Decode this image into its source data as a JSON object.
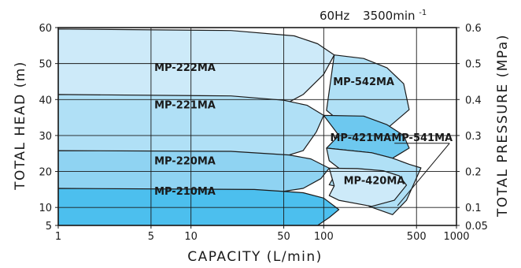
{
  "chart_data": {
    "type": "area",
    "condition": {
      "freq": "60Hz",
      "speed": "3500min",
      "speed_exp": "-1"
    },
    "xlabel": "CAPACITY (L/min)",
    "ylabel": "TOTAL HEAD (m)",
    "y2label": "TOTAL PRESSURE (MPa)",
    "x_scale": "log",
    "xlim": [
      1,
      1000
    ],
    "ylim": [
      5,
      60
    ],
    "x_ticks": [
      "1",
      "5",
      "10",
      "50",
      "100",
      "500",
      "1000"
    ],
    "y_ticks": [
      "5",
      "10",
      "20",
      "30",
      "40",
      "50",
      "60"
    ],
    "y2_ticks": [
      "0.05",
      "0.1",
      "0.2",
      "0.3",
      "0.4",
      "0.5",
      "0.6"
    ],
    "grid": true,
    "colors": {
      "lightest": "#cdeaf9",
      "light": "#b0e0f6",
      "mid": "#8fd3f2",
      "strong": "#6dc8ef",
      "strongest": "#4cbfee"
    },
    "series": [
      {
        "name": "MP-222MA",
        "color": "#cdeaf9",
        "boundary": [
          [
            1,
            59.6
          ],
          [
            20,
            59.2
          ],
          [
            60,
            57.7
          ],
          [
            90,
            55.5
          ],
          [
            120,
            52.4
          ],
          [
            100,
            47
          ],
          [
            70,
            41.4
          ]
        ]
      },
      {
        "name": "MP-221MA",
        "color": "#b0e0f6",
        "boundary": [
          [
            1,
            41.4
          ],
          [
            20,
            41.0
          ],
          [
            50,
            39.8
          ],
          [
            75,
            38.4
          ],
          [
            100,
            35.6
          ],
          [
            88,
            31
          ],
          [
            70,
            25.8
          ]
        ]
      },
      {
        "name": "MP-220MA",
        "color": "#8fd3f2",
        "boundary": [
          [
            1,
            25.8
          ],
          [
            20,
            25.6
          ],
          [
            55,
            24.6
          ],
          [
            80,
            23.5
          ],
          [
            110,
            20.9
          ],
          [
            95,
            18
          ],
          [
            70,
            15.3
          ]
        ]
      },
      {
        "name": "MP-210MA",
        "color": "#4cbfee",
        "boundary": [
          [
            1,
            15.3
          ],
          [
            30,
            15.0
          ],
          [
            70,
            14.1
          ],
          [
            100,
            12.6
          ],
          [
            130,
            9.4
          ],
          [
            110,
            7.2
          ],
          [
            90,
            5
          ]
        ]
      },
      {
        "name": "MP-542MA",
        "color": "#b0e0f6",
        "boundary": [
          [
            120,
            52.4
          ],
          [
            200,
            51.4
          ],
          [
            300,
            48.8
          ],
          [
            400,
            44.4
          ],
          [
            440,
            37.2
          ],
          [
            280,
            31
          ],
          [
            200,
            28.5
          ],
          [
            105,
            37
          ]
        ]
      },
      {
        "name": "MP-421MA",
        "color": "#6dc8ef",
        "boundary": [
          [
            100,
            35.6
          ],
          [
            200,
            35.4
          ],
          [
            300,
            33
          ],
          [
            400,
            30
          ],
          [
            440,
            26.5
          ],
          [
            330,
            23.7
          ],
          [
            230,
            25.2
          ],
          [
            105,
            26.5
          ],
          [
            130,
            30
          ]
        ]
      },
      {
        "name": "MP-541MA",
        "color": "#b0e0f6",
        "boundary": [
          [
            105,
            26.5
          ],
          [
            230,
            25.2
          ],
          [
            330,
            23.7
          ],
          [
            440,
            22
          ],
          [
            540,
            21
          ],
          [
            420,
            12
          ],
          [
            330,
            8
          ],
          [
            220,
            10.3
          ],
          [
            160,
            15
          ],
          [
            110,
            16.3
          ],
          [
            130,
            20.9
          ],
          [
            110,
            23
          ]
        ]
      },
      {
        "name": "MP-420MA",
        "color": "#cdeaf9",
        "boundary": [
          [
            110,
            20.9
          ],
          [
            180,
            20.8
          ],
          [
            280,
            20.2
          ],
          [
            370,
            18.8
          ],
          [
            420,
            16.2
          ],
          [
            340,
            12
          ],
          [
            230,
            10.3
          ],
          [
            130,
            12
          ],
          [
            110,
            13.3
          ],
          [
            120,
            16
          ]
        ]
      }
    ],
    "labels": [
      {
        "text": "MP-222MA",
        "x": 9,
        "y": 48
      },
      {
        "text": "MP-221MA",
        "x": 9,
        "y": 37.5
      },
      {
        "text": "MP-220MA",
        "x": 9,
        "y": 22
      },
      {
        "text": "MP-210MA",
        "x": 9,
        "y": 13.5
      },
      {
        "text": "MP-542MA",
        "x": 200,
        "y": 44
      },
      {
        "text": "MP-421MA",
        "x": 190,
        "y": 28.5
      },
      {
        "text": "MP-420MA",
        "x": 240,
        "y": 16.5
      },
      {
        "text": "MP-541MA",
        "x": 550,
        "y": 28.5
      }
    ]
  }
}
